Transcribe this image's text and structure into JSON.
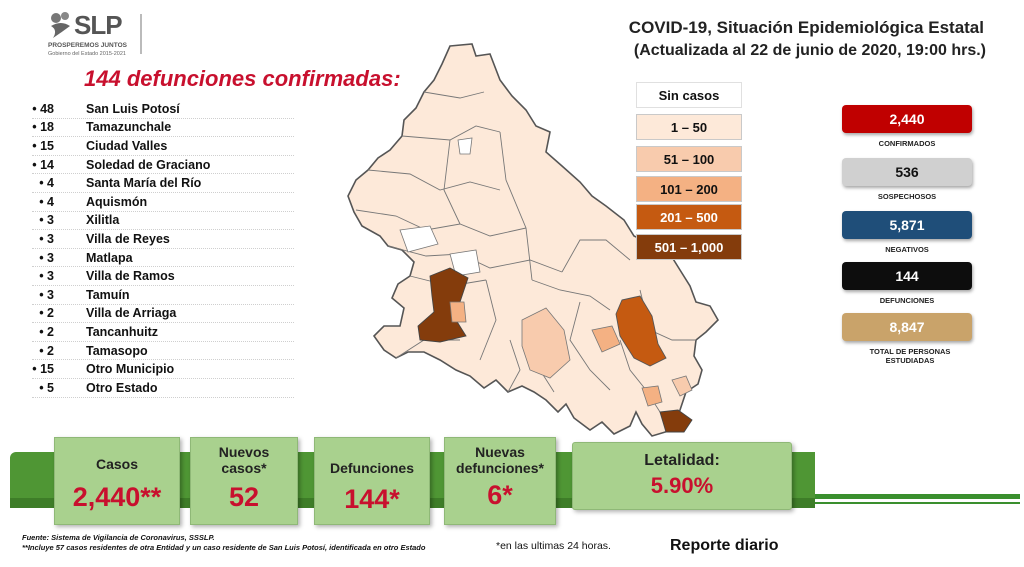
{
  "header": {
    "logo_text": "SLP",
    "logo_line1": "PROSPEREMOS JUNTOS",
    "logo_line2": "Gobierno del Estado 2015-2021",
    "title": "COVID-19, Situación Epidemiológica Estatal",
    "subtitle": "(Actualizada al 22 de junio de 2020, 19:00 hrs.)"
  },
  "deaths": {
    "title": "144 defunciones confirmadas:",
    "items": [
      {
        "num": "• 48",
        "name": "San Luis Potosí"
      },
      {
        "num": "• 18",
        "name": "Tamazunchale"
      },
      {
        "num": "• 15",
        "name": "Ciudad Valles"
      },
      {
        "num": "• 14",
        "name": "Soledad de Graciano"
      },
      {
        "num": "• 4",
        "name": "Santa María del Río"
      },
      {
        "num": "• 4",
        "name": "Aquismón"
      },
      {
        "num": "• 3",
        "name": "Xilitla"
      },
      {
        "num": "• 3",
        "name": "Villa de Reyes"
      },
      {
        "num": "• 3",
        "name": "Matlapa"
      },
      {
        "num": "• 3",
        "name": "Villa de Ramos"
      },
      {
        "num": "• 3",
        "name": "Tamuín"
      },
      {
        "num": "• 2",
        "name": "Villa de Arriaga"
      },
      {
        "num": "• 2",
        "name": "Tancanhuitz"
      },
      {
        "num": "• 2",
        "name": "Tamasopo"
      },
      {
        "num": "• 15",
        "name": "Otro Municipio"
      },
      {
        "num": "• 5",
        "name": "Otro Estado"
      }
    ]
  },
  "legend": [
    {
      "label": "Sin casos",
      "color": "#ffffff"
    },
    {
      "label": "1 – 50",
      "color": "#fde9d9"
    },
    {
      "label": "51 – 100",
      "color": "#f8cbad"
    },
    {
      "label": "101 – 200",
      "color": "#f4b183"
    },
    {
      "label": "201 – 500",
      "color": "#c55a11"
    },
    {
      "label": "501 – 1,000",
      "color": "#843c0c"
    }
  ],
  "stats": [
    {
      "value": "2,440",
      "label": "CONFIRMADOS",
      "color": "#c00000"
    },
    {
      "value": "536",
      "label": "SOSPECHOSOS",
      "color": "#d0d0d0"
    },
    {
      "value": "5,871",
      "label": "NEGATIVOS",
      "color": "#1f4e79"
    },
    {
      "value": "144",
      "label": "DEFUNCIONES",
      "color": "#0d0d0d"
    },
    {
      "value": "8,847",
      "label": "TOTAL DE PERSONAS ESTUDIADAS",
      "color": "#c9a36a"
    }
  ],
  "summary": {
    "casos_label": "Casos",
    "casos_value": "2,440**",
    "nuevos_label": "Nuevos casos*",
    "nuevos_value": "52",
    "def_label": "Defunciones",
    "def_value": "144*",
    "nuevas_def_label": "Nuevas defunciones*",
    "nuevas_def_value": "6*",
    "letalidad_label": "Letalidad:",
    "letalidad_value": "5.90%"
  },
  "footer": {
    "source": "Fuente: Sistema de Vigilancia de Coronavirus, SSSLP.",
    "note": "**Incluye 57 casos residentes de otra Entidad y un caso residente de San Luis Potosí, identificada en otro Estado",
    "note24": "*en las ultimas 24 horas.",
    "reporte": "Reporte diario"
  }
}
